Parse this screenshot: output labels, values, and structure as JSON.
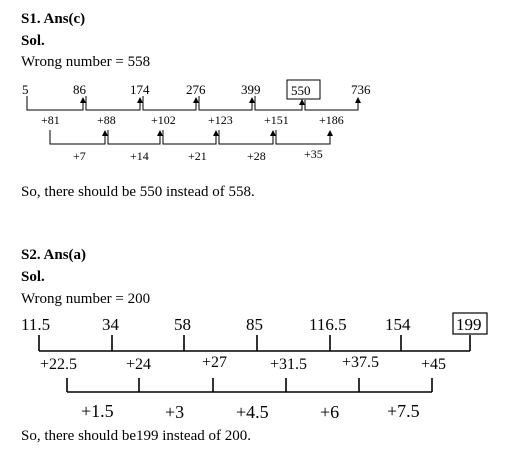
{
  "s1": {
    "heading": "S1. Ans(c)",
    "sol_label": "Sol.",
    "wrong_number_text": "Wrong number = 558",
    "series": [
      "5",
      "86",
      "174",
      "276",
      "399",
      "550",
      "736"
    ],
    "boxed_term": "550",
    "first_differences": [
      "+81",
      "+88",
      "+102",
      "+123",
      "+151",
      "+186"
    ],
    "second_differences": [
      "+7",
      "+14",
      "+21",
      "+28",
      "+35"
    ],
    "conclusion": "So, there should be 550 instead of 558."
  },
  "s2": {
    "heading": "S2. Ans(a)",
    "sol_label": "Sol.",
    "wrong_number_text": "Wrong number = 200",
    "series": [
      "11.5",
      "34",
      "58",
      "85",
      "116.5",
      "154",
      "199"
    ],
    "boxed_term": "199",
    "first_differences": [
      "+22.5",
      "+24",
      "+27",
      "+31.5",
      "+37.5",
      "+45"
    ],
    "second_differences": [
      "+1.5",
      "+3",
      "+4.5",
      "+6",
      "+7.5"
    ],
    "conclusion": "So, there should be199 instead of 200."
  }
}
